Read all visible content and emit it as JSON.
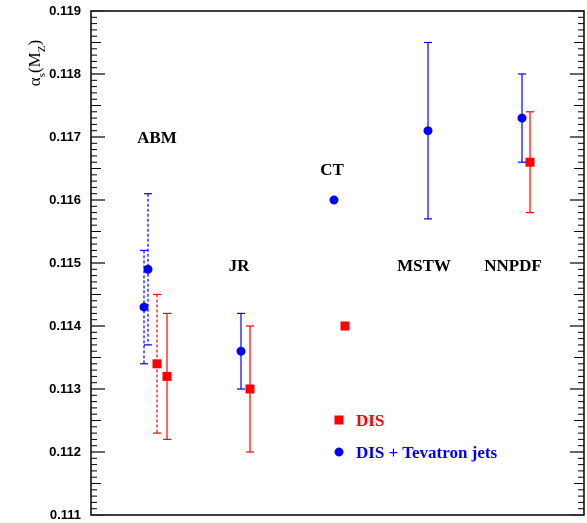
{
  "chart_data": {
    "type": "scatter",
    "title": "",
    "xlabel": "",
    "ylabel": "α_s(M_Z)",
    "ylabel_main": "α",
    "ylabel_sub": "s",
    "ylabel_open": "(M",
    "ylabel_sub2": "Z",
    "ylabel_close": ")",
    "ylim": [
      0.111,
      0.119
    ],
    "yticks": [
      "0.111",
      "0.112",
      "0.113",
      "0.114",
      "0.115",
      "0.116",
      "0.117",
      "0.118",
      "0.119"
    ],
    "grid": false,
    "legend_position": "bottom-right",
    "groups": [
      {
        "label": "ABM"
      },
      {
        "label": "JR"
      },
      {
        "label": "CT"
      },
      {
        "label": "MSTW"
      },
      {
        "label": "NNPDF"
      }
    ],
    "series": [
      {
        "name": "DIS",
        "color": "#ff0000",
        "marker": "square",
        "points": [
          {
            "group": "ABM",
            "y": 0.1134,
            "err_low": 0.1123,
            "err_high": 0.1145,
            "dashed": true
          },
          {
            "group": "ABM",
            "y": 0.1132,
            "err_low": 0.1122,
            "err_high": 0.1142,
            "dashed": false
          },
          {
            "group": "JR",
            "y": 0.113,
            "err_low": 0.112,
            "err_high": 0.114,
            "dashed": false
          },
          {
            "group": "CT",
            "y": 0.114,
            "err_low": null,
            "err_high": null,
            "dashed": false
          },
          {
            "group": "NNPDF",
            "y": 0.1166,
            "err_low": 0.1158,
            "err_high": 0.1174,
            "dashed": false
          }
        ]
      },
      {
        "name": "DIS + Tevatron jets",
        "color": "#0000ff",
        "marker": "circle",
        "points": [
          {
            "group": "ABM",
            "y": 0.1143,
            "err_low": 0.1134,
            "err_high": 0.1152,
            "dashed": true
          },
          {
            "group": "ABM",
            "y": 0.1149,
            "err_low": 0.1137,
            "err_high": 0.1161,
            "dashed": true
          },
          {
            "group": "JR",
            "y": 0.1136,
            "err_low": 0.113,
            "err_high": 0.1142,
            "dashed": false
          },
          {
            "group": "CT",
            "y": 0.116,
            "err_low": null,
            "err_high": null,
            "dashed": false
          },
          {
            "group": "MSTW",
            "y": 0.1171,
            "err_low": 0.1157,
            "err_high": 0.1185,
            "dashed": false
          },
          {
            "group": "NNPDF",
            "y": 0.1173,
            "err_low": 0.1166,
            "err_high": 0.118,
            "dashed": false
          }
        ]
      }
    ],
    "legend": [
      {
        "label": "DIS",
        "color": "#ff0000",
        "marker": "square"
      },
      {
        "label": "DIS + Tevatron jets",
        "color": "#0000ff",
        "marker": "circle"
      }
    ]
  }
}
